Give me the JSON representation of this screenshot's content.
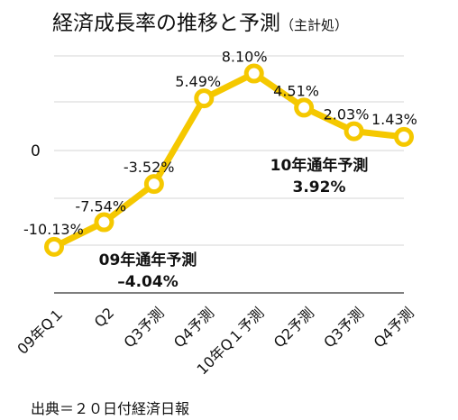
{
  "title": "経済成長率の推移と予測",
  "subtitle": "（主計処）",
  "source": "出典＝２０日付経済日報",
  "chart_data": {
    "type": "line",
    "categories": [
      "09年Q１",
      "Q2",
      "Q3予測",
      "Q4予測",
      "10年Q１予測",
      "Q2予測",
      "Q3予測",
      "Q4予測"
    ],
    "values": [
      -10.13,
      -7.54,
      -3.52,
      5.49,
      8.1,
      4.51,
      2.03,
      1.43
    ],
    "data_labels": [
      "-10.13%",
      "-7.54%",
      "-3.52%",
      "5.49%",
      "8.10%",
      "4.51%",
      "2.03%",
      "1.43%"
    ],
    "y_tick_labels": [
      "0"
    ],
    "ylim": [
      -17,
      17
    ],
    "grid": true,
    "color": "#f5c800",
    "annotations": [
      {
        "line1": "09年通年予測",
        "line2": "–4.04%"
      },
      {
        "line1": "10年通年予測",
        "line2": "3.92%"
      }
    ]
  }
}
